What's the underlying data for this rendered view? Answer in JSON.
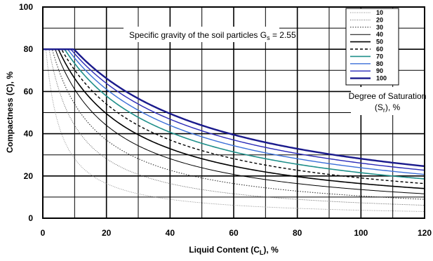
{
  "chart_data": {
    "type": "line",
    "xlabel_main": "Liquid Content",
    "xlabel_symbol": "C",
    "xlabel_sub": "L",
    "xlabel_suffix": "), %",
    "ylabel": "Compactness (C), %",
    "xlim": [
      0,
      120
    ],
    "ylim": [
      0,
      100
    ],
    "x_ticks": [
      0,
      20,
      40,
      60,
      80,
      100,
      120
    ],
    "y_ticks": [
      0,
      20,
      40,
      60,
      80,
      100
    ],
    "grid": true,
    "legend_placement": "top-right",
    "max_compactness": 80,
    "specific_gravity": 2.55,
    "gravity_note_prefix": "Specific gravity of the soil particles",
    "gravity_note_symbol": "G",
    "gravity_note_sub": "s",
    "gravity_note_value": "= 2.55",
    "saturation_label_line1": "Degree of Saturation",
    "saturation_label_line2_open": "(S",
    "saturation_label_line2_sub": "r",
    "saturation_label_line2_close": "), %",
    "series": [
      {
        "name": "10",
        "color": "#888888",
        "dash": "1,1.5",
        "width": 0.9
      },
      {
        "name": "20",
        "color": "#555555",
        "dash": "1,1.5",
        "width": 0.9
      },
      {
        "name": "30",
        "color": "#222222",
        "dash": "1.5,2",
        "width": 1
      },
      {
        "name": "40",
        "color": "#000000",
        "dash": "",
        "width": 1
      },
      {
        "name": "50",
        "color": "#000000",
        "dash": "",
        "width": 1.6
      },
      {
        "name": "60",
        "color": "#000000",
        "dash": "4,3",
        "width": 1.4
      },
      {
        "name": "70",
        "color": "#1f8f8a",
        "dash": "",
        "width": 1.6
      },
      {
        "name": "80",
        "color": "#3b6fd8",
        "dash": "",
        "width": 1.4
      },
      {
        "name": "90",
        "color": "#2a2ab8",
        "dash": "",
        "width": 1.4
      },
      {
        "name": "100",
        "color": "#1a1a8c",
        "dash": "",
        "width": 2.4
      }
    ]
  }
}
